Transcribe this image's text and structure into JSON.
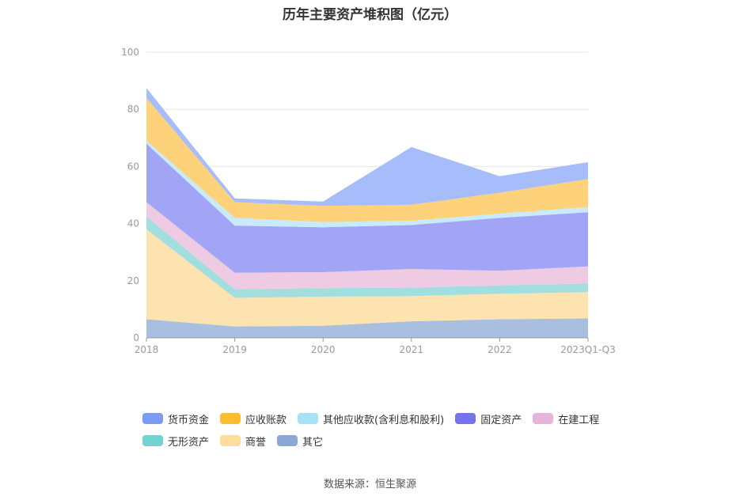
{
  "chart_data": {
    "type": "area",
    "stacked": true,
    "title": "历年主要资产堆积图（亿元）",
    "categories": [
      "2018",
      "2019",
      "2020",
      "2021",
      "2022",
      "2023Q1-Q3"
    ],
    "ylim": [
      0,
      100
    ],
    "yticks": [
      0,
      20,
      40,
      60,
      80,
      100
    ],
    "grid": true,
    "legend_position": "bottom",
    "series": [
      {
        "name": "其它",
        "color": "#a8bfe0",
        "values": [
          6.5,
          4.0,
          4.2,
          5.8,
          6.5,
          6.8
        ]
      },
      {
        "name": "商誉",
        "color": "#fde3b0",
        "values": [
          31.5,
          10.0,
          10.2,
          8.8,
          8.9,
          9.2
        ]
      },
      {
        "name": "无形资产",
        "color": "#a2dede",
        "values": [
          4.5,
          3.0,
          3.0,
          3.0,
          3.0,
          3.0
        ]
      },
      {
        "name": "在建工程",
        "color": "#efcbe3",
        "values": [
          5.0,
          5.8,
          5.6,
          6.5,
          5.1,
          6.0
        ]
      },
      {
        "name": "固定资产",
        "color": "#a2a5f5",
        "values": [
          20.5,
          16.5,
          15.7,
          15.4,
          18.5,
          19.0
        ]
      },
      {
        "name": "其他应收款(含利息和股利)",
        "color": "#c8ebfb",
        "values": [
          1.0,
          2.7,
          1.8,
          1.5,
          1.5,
          1.8
        ]
      },
      {
        "name": "应收账款",
        "color": "#fdd27a",
        "values": [
          15.0,
          5.5,
          5.7,
          5.6,
          7.3,
          9.8
        ]
      },
      {
        "name": "货币资金",
        "color": "#a6bcfb",
        "values": [
          3.5,
          1.3,
          1.5,
          20.2,
          5.8,
          5.9
        ]
      }
    ],
    "legend": [
      {
        "name": "货币资金",
        "color": "#7b9cf5"
      },
      {
        "name": "应收账款",
        "color": "#fbbd2f"
      },
      {
        "name": "其他应收款(含利息和股利)",
        "color": "#a6e1f8"
      },
      {
        "name": "固定资产",
        "color": "#7673ec"
      },
      {
        "name": "在建工程",
        "color": "#e7b5d9"
      },
      {
        "name": "无形资产",
        "color": "#74d2d2"
      },
      {
        "name": "商誉",
        "color": "#fddc9d"
      },
      {
        "name": "其它",
        "color": "#8aa8d6"
      }
    ],
    "source": "数据来源：恒生聚源"
  }
}
